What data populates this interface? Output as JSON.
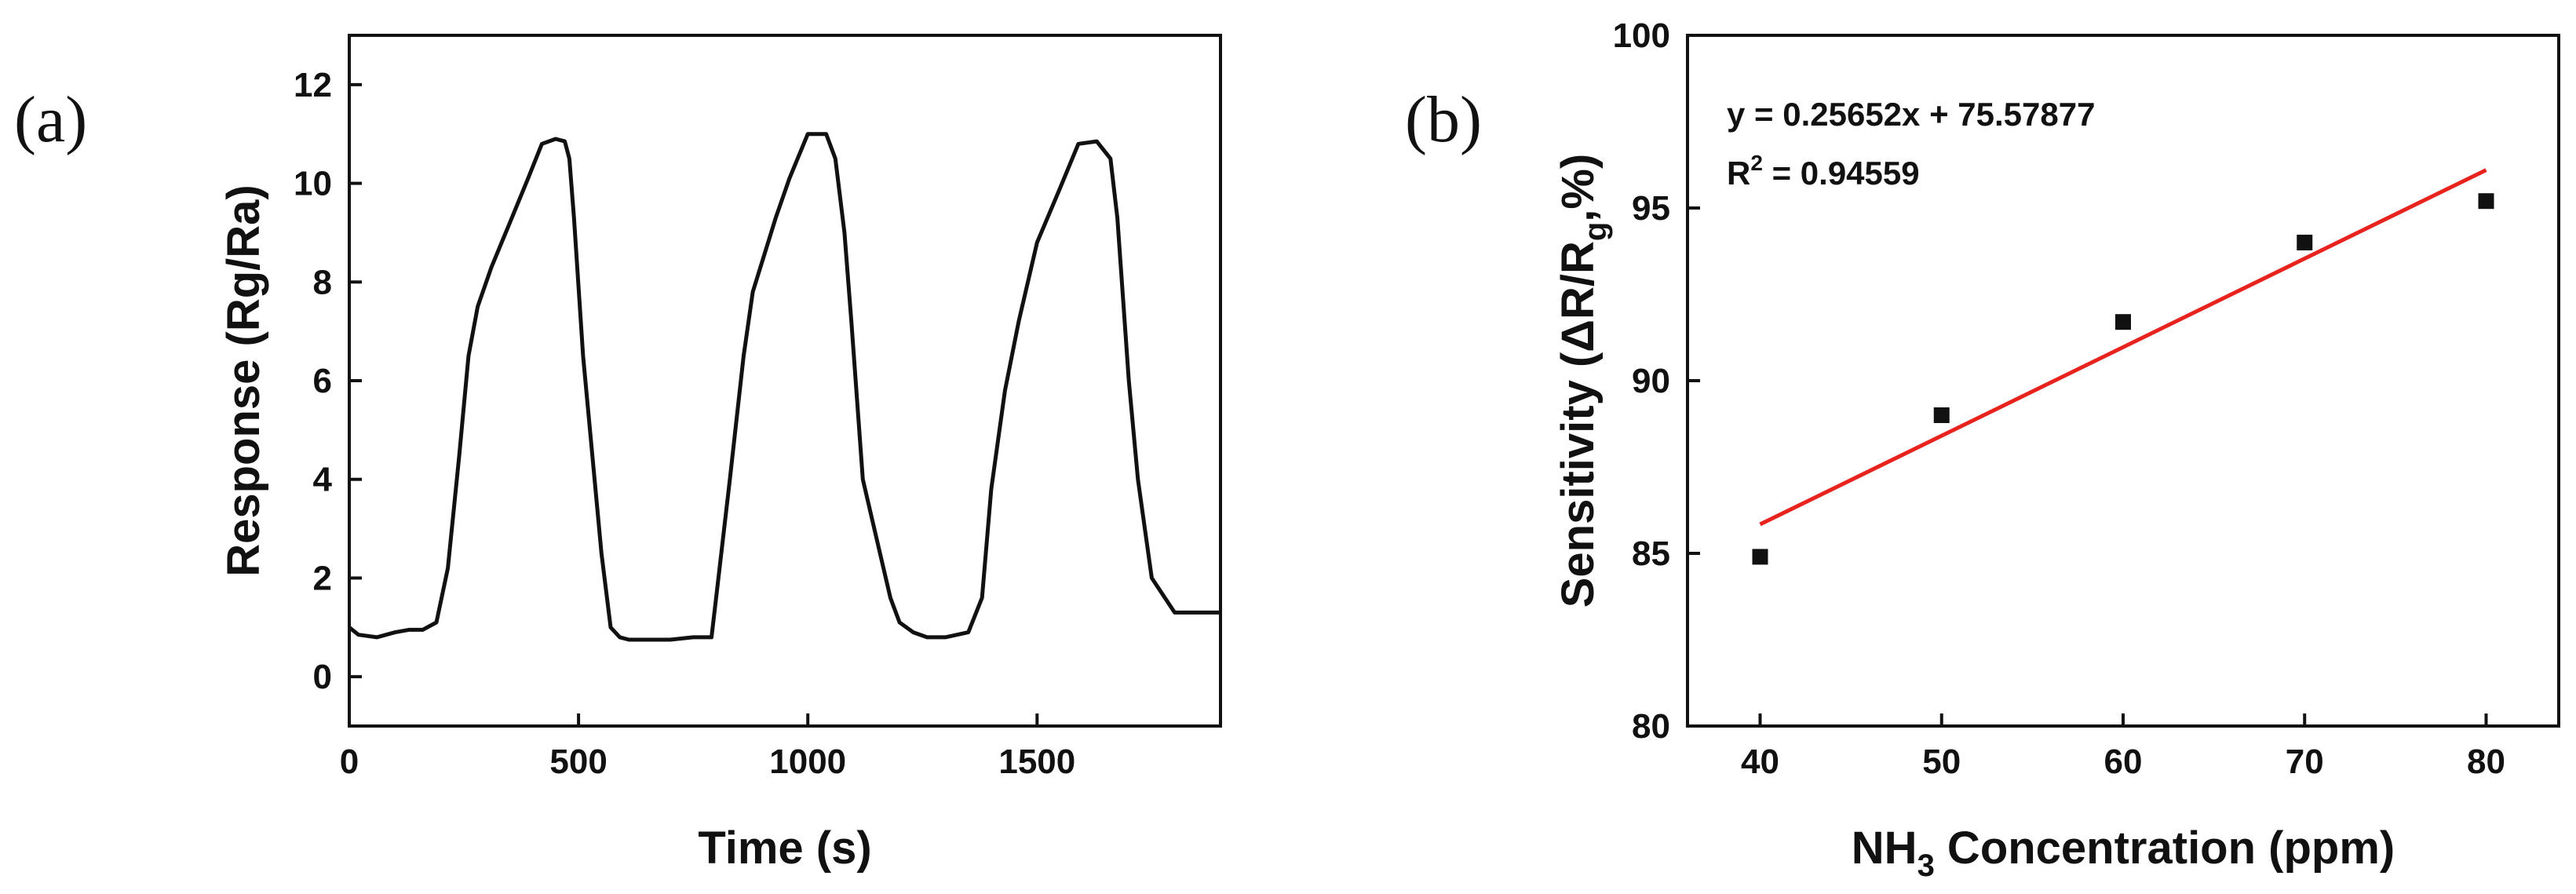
{
  "chart_data": [
    {
      "panel_label": "(a)",
      "type": "line",
      "xlabel": "Time (s)",
      "ylabel": "Response (Rg/Ra)",
      "xlim": [
        0,
        1900
      ],
      "ylim": [
        -1,
        13
      ],
      "xticks": [
        0,
        500,
        1000,
        1500
      ],
      "yticks": [
        0,
        2,
        4,
        6,
        8,
        10,
        12
      ],
      "series": [
        {
          "color": "#111111",
          "x": [
            0,
            20,
            60,
            100,
            130,
            160,
            190,
            215,
            240,
            260,
            280,
            310,
            350,
            390,
            420,
            450,
            470,
            480,
            490,
            510,
            530,
            550,
            570,
            590,
            610,
            650,
            700,
            750,
            790,
            800,
            830,
            860,
            880,
            900,
            930,
            960,
            1000,
            1040,
            1060,
            1080,
            1095,
            1120,
            1150,
            1180,
            1200,
            1230,
            1260,
            1300,
            1350,
            1380,
            1400,
            1430,
            1460,
            1500,
            1550,
            1590,
            1630,
            1660,
            1675,
            1700,
            1720,
            1750,
            1800,
            1900
          ],
          "y": [
            1.0,
            0.85,
            0.8,
            0.9,
            0.95,
            0.95,
            1.1,
            2.2,
            4.5,
            6.5,
            7.5,
            8.3,
            9.2,
            10.1,
            10.8,
            10.9,
            10.85,
            10.5,
            9.3,
            6.5,
            4.5,
            2.5,
            1.0,
            0.8,
            0.75,
            0.75,
            0.75,
            0.8,
            0.8,
            1.6,
            4.0,
            6.5,
            7.8,
            8.4,
            9.3,
            10.1,
            11.0,
            11.0,
            10.5,
            9.0,
            7.2,
            4.0,
            2.8,
            1.6,
            1.1,
            0.9,
            0.8,
            0.8,
            0.9,
            1.6,
            3.8,
            5.8,
            7.2,
            8.8,
            9.9,
            10.8,
            10.85,
            10.5,
            9.3,
            6.0,
            4.0,
            2.0,
            1.3,
            1.3
          ]
        }
      ]
    },
    {
      "panel_label": "(b)",
      "type": "scatter",
      "xlabel_parts": [
        "NH",
        "3",
        " Concentration (ppm)"
      ],
      "ylabel_parts": [
        "Sensitivity (ΔR/R",
        "g",
        ",%)"
      ],
      "xlim": [
        36,
        84
      ],
      "ylim": [
        80,
        100
      ],
      "xticks": [
        40,
        50,
        60,
        70,
        80
      ],
      "yticks": [
        80,
        85,
        90,
        95,
        100
      ],
      "points": {
        "x": [
          40,
          50,
          60,
          70,
          80
        ],
        "y": [
          84.9,
          89.0,
          91.7,
          94.0,
          95.2
        ],
        "color": "#111111"
      },
      "fit": {
        "x": [
          40,
          80
        ],
        "y": [
          85.84,
          96.1
        ],
        "color": "#e8231e"
      },
      "equation": "y = 0.25652x + 75.57877",
      "r2_parts": [
        "R",
        "2",
        " = 0.94559"
      ]
    }
  ]
}
